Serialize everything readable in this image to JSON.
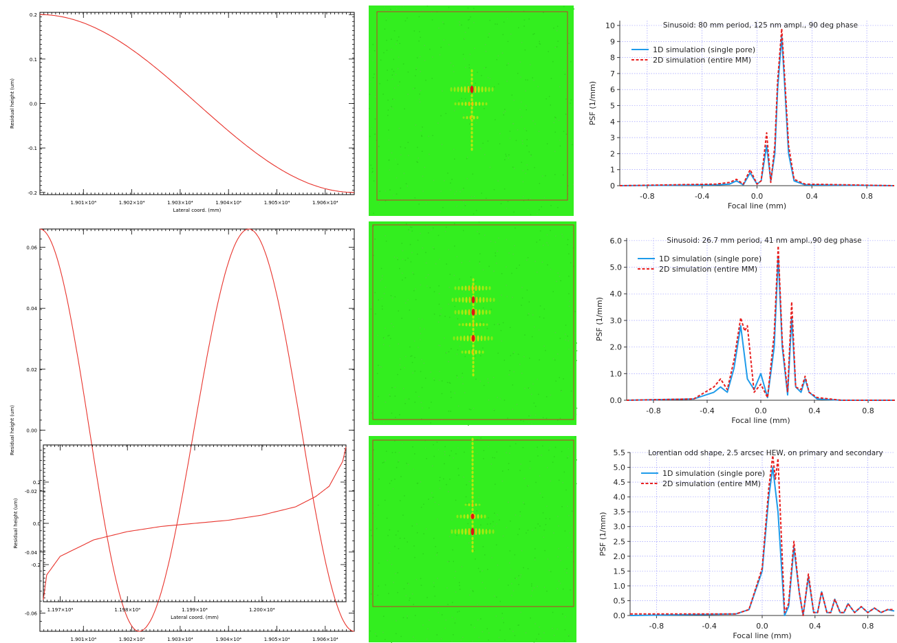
{
  "colors": {
    "red_curve": "#e8322b",
    "blue_series": "#1e9bea",
    "red_series": "#e81e1e",
    "image_green": "#33ee1f",
    "image_frame": "#c0392b"
  },
  "profiles": [
    {
      "xlabel": "Lateral coord. (mm)",
      "ylabel": "Residual height (um)",
      "xticks": [
        "1.901×10⁴",
        "1.902×10⁴",
        "1.903×10⁴",
        "1.904×10⁴",
        "1.905×10⁴",
        "1.906×10⁴"
      ],
      "yticks": [
        "0.2",
        "0.1",
        "0.0",
        "-0.1",
        "-0.2"
      ]
    },
    {
      "xlabel": "Lateral coord. (mm)",
      "ylabel": "Residual height (um)",
      "xticks": [
        "1.901×10⁴",
        "1.902×10⁴",
        "1.903×10⁴",
        "1.904×10⁴",
        "1.905×10⁴",
        "1.906×10⁴"
      ],
      "yticks": [
        "0.06",
        "0.04",
        "0.02",
        "0.00",
        "-0.02",
        "-0.04",
        "-0.06"
      ]
    },
    {
      "xlabel": "Lateral coord. (mm)",
      "ylabel": "Residual height (um)",
      "xticks": [
        "1.197×10⁴",
        "1.198×10⁴",
        "1.199×10⁴",
        "1.200×10⁴"
      ],
      "yticks": [
        "0.2",
        "0.0",
        "-0.2"
      ]
    }
  ],
  "chart_data": [
    {
      "type": "line",
      "xlabel": "Lateral coord. (mm)",
      "ylabel": "Residual height (um)",
      "xlim": [
        19001,
        19066
      ],
      "ylim": [
        -0.205,
        0.205
      ],
      "series": [
        {
          "x": [
            19001,
            19066
          ],
          "shape": "half-cosine",
          "values": [
            0.2,
            -0.2
          ]
        }
      ]
    },
    {
      "type": "line",
      "xlabel": "Lateral coord. (mm)",
      "ylabel": "Residual height (um)",
      "xlim": [
        19001,
        19066
      ],
      "ylim": [
        -0.066,
        0.066
      ],
      "series": [
        {
          "x": [
            19001,
            19021.5,
            19044.2,
            19066
          ],
          "values": [
            0.066,
            -0.066,
            0.066,
            -0.066
          ]
        }
      ]
    },
    {
      "type": "line",
      "xlabel": "Lateral coord. (mm)",
      "ylabel": "Residual height (um)",
      "xlim": [
        11967.5,
        12012.5
      ],
      "ylim": [
        -0.38,
        0.38
      ],
      "series": [
        {
          "x": [
            11967.5,
            11968,
            11970,
            11975,
            11980,
            11985,
            11990,
            11995,
            12000,
            12005,
            12008,
            12010,
            12012,
            12012.5
          ],
          "values": [
            -0.37,
            -0.25,
            -0.16,
            -0.08,
            -0.04,
            -0.015,
            0.0,
            0.015,
            0.04,
            0.08,
            0.13,
            0.18,
            0.3,
            0.37
          ]
        }
      ]
    },
    {
      "type": "line",
      "title": "Sinusoid: 80 mm period, 125 nm ampl., 90 deg phase",
      "xlabel": "Focal line (mm)",
      "ylabel": "PSF (1/mm)",
      "xlim": [
        -1.0,
        1.0
      ],
      "ylim": [
        0,
        10.3
      ],
      "xticks": [
        "-0.8",
        "-0.4",
        "0.0",
        "0.4",
        "0.8"
      ],
      "yticks": [
        "0",
        "1",
        "2",
        "3",
        "4",
        "5",
        "6",
        "7",
        "8",
        "9",
        "10"
      ],
      "series": [
        {
          "name": "1D simulation (single pore)",
          "x": [
            -1.0,
            -0.3,
            -0.2,
            -0.15,
            -0.1,
            -0.05,
            0.0,
            0.03,
            0.07,
            0.1,
            0.13,
            0.15,
            0.18,
            0.2,
            0.23,
            0.27,
            0.35,
            1.0
          ],
          "values": [
            0.0,
            0.05,
            0.1,
            0.3,
            0.05,
            0.8,
            0.1,
            0.3,
            2.5,
            0.3,
            2.0,
            6.0,
            9.3,
            6.5,
            2.0,
            0.3,
            0.05,
            0.0
          ]
        },
        {
          "name": "2D simulation (entire MM)",
          "x": [
            -1.0,
            -0.3,
            -0.2,
            -0.15,
            -0.1,
            -0.05,
            0.0,
            0.03,
            0.07,
            0.1,
            0.13,
            0.15,
            0.18,
            0.2,
            0.23,
            0.27,
            0.35,
            1.0
          ],
          "values": [
            0.0,
            0.1,
            0.2,
            0.4,
            0.1,
            1.0,
            0.1,
            0.3,
            3.3,
            0.2,
            2.5,
            6.5,
            9.8,
            7.0,
            2.5,
            0.4,
            0.1,
            0.0
          ]
        }
      ]
    },
    {
      "type": "line",
      "title": "Sinusoid: 26.7 mm period, 41 nm ampl.,90 deg phase",
      "xlabel": "Focal line (mm)",
      "ylabel": "PSF (1/mm)",
      "xlim": [
        -1.0,
        1.0
      ],
      "ylim": [
        0,
        6.1
      ],
      "xticks": [
        "-0.8",
        "-0.4",
        "0.0",
        "0.4",
        "0.8"
      ],
      "yticks": [
        "0.0",
        "1.0",
        "2.0",
        "3.0",
        "4.0",
        "5.0",
        "6.0"
      ],
      "series": [
        {
          "name": "1D simulation (single pore)",
          "x": [
            -1.0,
            -0.5,
            -0.35,
            -0.3,
            -0.25,
            -0.2,
            -0.15,
            -0.1,
            -0.05,
            0.0,
            0.05,
            0.1,
            0.13,
            0.16,
            0.2,
            0.23,
            0.26,
            0.3,
            0.33,
            0.36,
            0.42,
            0.6,
            1.0
          ],
          "values": [
            0.0,
            0.05,
            0.3,
            0.5,
            0.3,
            1.2,
            2.8,
            0.8,
            0.4,
            1.0,
            0.1,
            2.0,
            5.4,
            2.0,
            0.2,
            3.1,
            0.5,
            0.3,
            0.8,
            0.3,
            0.05,
            0.0,
            0.0
          ]
        },
        {
          "name": "2D simulation (entire MM)",
          "x": [
            -1.0,
            -0.5,
            -0.35,
            -0.3,
            -0.25,
            -0.2,
            -0.15,
            -0.12,
            -0.1,
            -0.05,
            0.0,
            0.05,
            0.1,
            0.13,
            0.16,
            0.2,
            0.23,
            0.26,
            0.3,
            0.33,
            0.36,
            0.42,
            0.6,
            1.0
          ],
          "values": [
            0.0,
            0.05,
            0.5,
            0.8,
            0.4,
            1.5,
            3.1,
            2.6,
            2.8,
            0.3,
            0.6,
            0.1,
            2.5,
            5.8,
            2.2,
            0.3,
            3.7,
            0.5,
            0.4,
            0.9,
            0.3,
            0.1,
            0.0,
            0.0
          ]
        }
      ]
    },
    {
      "type": "line",
      "title": "Lorentian odd shape, 2.5 arcsec HEW, on primary and secondary",
      "xlabel": "Focal line (mm)",
      "ylabel": "PSF (1/mm)",
      "xlim": [
        -1.0,
        1.0
      ],
      "ylim": [
        0,
        5.5
      ],
      "xticks": [
        "-0.8",
        "-0.4",
        "0.0",
        "0.4",
        "0.8"
      ],
      "yticks": [
        "0.0",
        "0.5",
        "1.0",
        "1.5",
        "2.0",
        "2.5",
        "3.0",
        "3.5",
        "4.0",
        "4.5",
        "5.0",
        "5.5"
      ],
      "series": [
        {
          "name": "1D simulation (single pore)",
          "x": [
            -1.0,
            -0.2,
            -0.1,
            0.0,
            0.05,
            0.08,
            0.12,
            0.17,
            0.2,
            0.24,
            0.28,
            0.31,
            0.35,
            0.39,
            0.42,
            0.45,
            0.49,
            0.52,
            0.55,
            0.59,
            0.62,
            0.65,
            0.7,
            0.75,
            0.8,
            0.85,
            0.9,
            0.95,
            1.0
          ],
          "values": [
            0.0,
            0.05,
            0.2,
            1.5,
            4.0,
            5.0,
            3.5,
            0.0,
            0.3,
            2.3,
            0.8,
            0.0,
            1.3,
            0.1,
            0.1,
            0.8,
            0.1,
            0.1,
            0.55,
            0.1,
            0.1,
            0.4,
            0.1,
            0.3,
            0.1,
            0.25,
            0.1,
            0.2,
            0.15
          ]
        },
        {
          "name": "2D simulation (entire MM)",
          "x": [
            -1.0,
            -0.2,
            -0.1,
            0.0,
            0.05,
            0.08,
            0.1,
            0.12,
            0.17,
            0.2,
            0.24,
            0.28,
            0.31,
            0.35,
            0.39,
            0.42,
            0.45,
            0.49,
            0.52,
            0.55,
            0.59,
            0.62,
            0.65,
            0.7,
            0.75,
            0.8,
            0.85,
            0.9,
            0.95,
            1.0
          ],
          "values": [
            0.05,
            0.05,
            0.2,
            1.6,
            4.3,
            5.4,
            4.6,
            5.3,
            0.1,
            0.4,
            2.5,
            0.8,
            0.0,
            1.4,
            0.1,
            0.1,
            0.8,
            0.1,
            0.1,
            0.55,
            0.1,
            0.1,
            0.4,
            0.1,
            0.3,
            0.1,
            0.25,
            0.1,
            0.2,
            0.2
          ]
        }
      ]
    }
  ]
}
